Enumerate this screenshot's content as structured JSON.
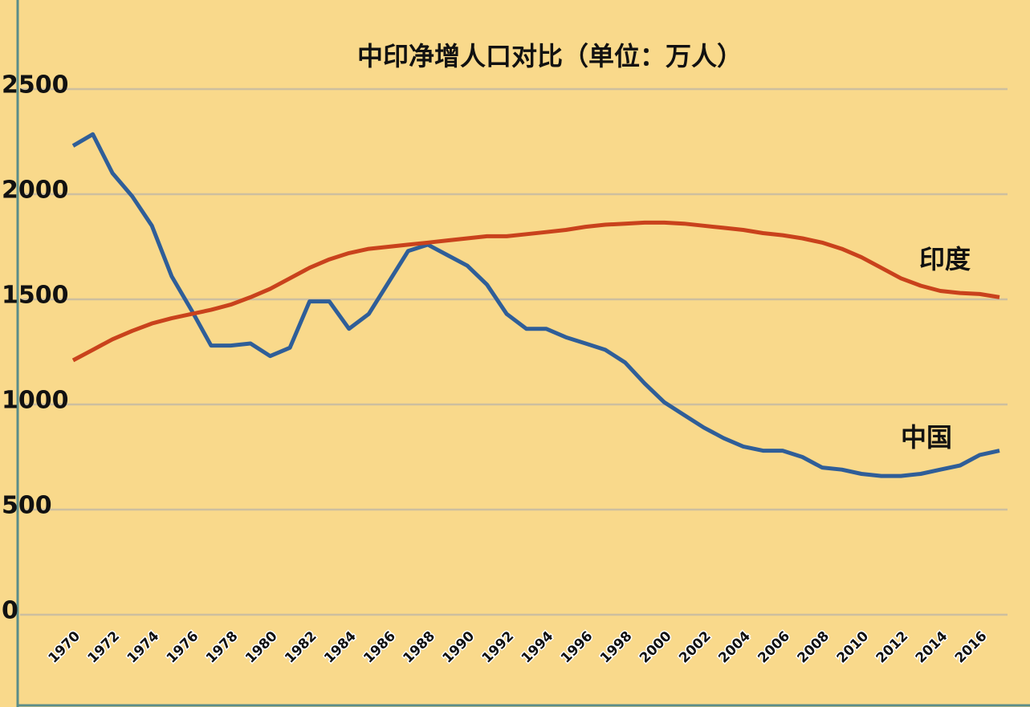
{
  "chart_data": {
    "type": "line",
    "title": "中印净增人口对比（单位：万人）",
    "x": [
      1970,
      1971,
      1972,
      1973,
      1974,
      1975,
      1976,
      1977,
      1978,
      1979,
      1980,
      1981,
      1982,
      1983,
      1984,
      1985,
      1986,
      1987,
      1988,
      1989,
      1990,
      1991,
      1992,
      1993,
      1994,
      1995,
      1996,
      1997,
      1998,
      1999,
      2000,
      2001,
      2002,
      2003,
      2004,
      2005,
      2006,
      2007,
      2008,
      2009,
      2010,
      2011,
      2012,
      2013,
      2014,
      2015,
      2016,
      2017
    ],
    "xlim": [
      1970,
      2017
    ],
    "xticks": [
      1970,
      1972,
      1974,
      1976,
      1978,
      1980,
      1982,
      1984,
      1986,
      1988,
      1990,
      1992,
      1994,
      1996,
      1998,
      2000,
      2002,
      2004,
      2006,
      2008,
      2010,
      2012,
      2014,
      2016
    ],
    "ylim": [
      0,
      2500
    ],
    "yticks": [
      0,
      500,
      1000,
      1500,
      2000,
      2500
    ],
    "grid": true,
    "series": [
      {
        "name": "中国",
        "color": "#2f5e98",
        "values": [
          2230,
          2285,
          2100,
          1990,
          1850,
          1610,
          1450,
          1280,
          1280,
          1290,
          1230,
          1270,
          1490,
          1490,
          1360,
          1430,
          1580,
          1730,
          1760,
          1710,
          1660,
          1570,
          1430,
          1360,
          1360,
          1320,
          1290,
          1260,
          1200,
          1100,
          1010,
          950,
          890,
          840,
          800,
          780,
          780,
          750,
          700,
          690,
          670,
          660,
          660,
          670,
          690,
          710,
          760,
          780
        ]
      },
      {
        "name": "印度",
        "color": "#c9421c",
        "values": [
          1210,
          1260,
          1310,
          1350,
          1385,
          1410,
          1430,
          1450,
          1475,
          1510,
          1550,
          1600,
          1650,
          1690,
          1720,
          1740,
          1750,
          1760,
          1770,
          1780,
          1790,
          1800,
          1800,
          1810,
          1820,
          1830,
          1845,
          1855,
          1860,
          1865,
          1865,
          1860,
          1850,
          1840,
          1830,
          1815,
          1805,
          1790,
          1770,
          1740,
          1700,
          1650,
          1600,
          1565,
          1540,
          1530,
          1525,
          1510
        ]
      }
    ]
  }
}
